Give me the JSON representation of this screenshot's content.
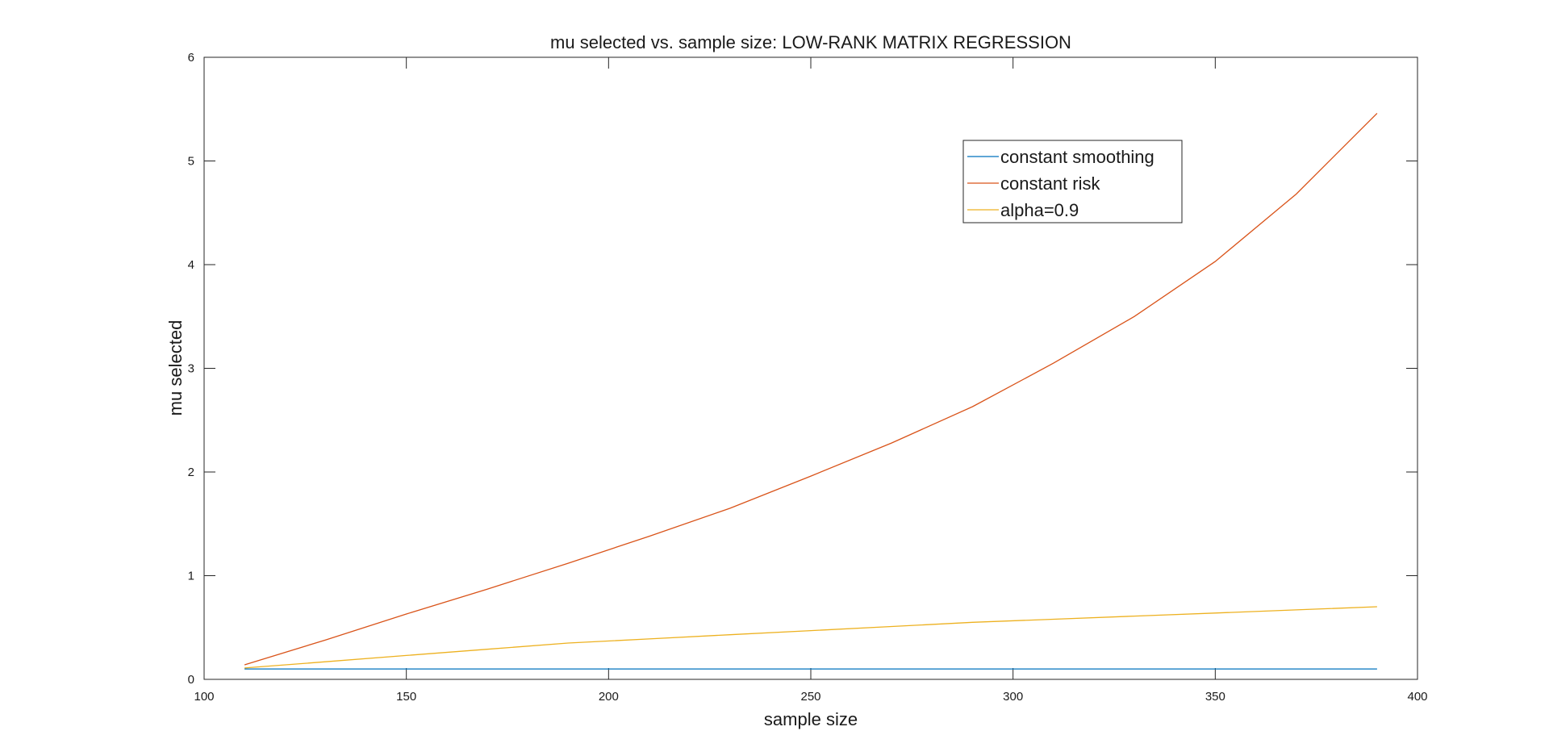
{
  "chart_data": {
    "type": "line",
    "title": "mu selected vs. sample size: LOW-RANK MATRIX REGRESSION",
    "xlabel": "sample size",
    "ylabel": "mu selected",
    "xlim": [
      100,
      400
    ],
    "ylim": [
      0,
      6
    ],
    "xticks": [
      "100",
      "150",
      "200",
      "250",
      "300",
      "350",
      "400"
    ],
    "yticks": [
      "0",
      "1",
      "2",
      "3",
      "4",
      "5",
      "6"
    ],
    "grid": false,
    "legend_position": "top-right",
    "x": [
      110,
      130,
      150,
      170,
      190,
      210,
      230,
      250,
      270,
      290,
      310,
      330,
      350,
      370,
      390
    ],
    "series": [
      {
        "name": "constant smoothing",
        "color": "#0072bd",
        "values": [
          0.1,
          0.1,
          0.1,
          0.1,
          0.1,
          0.1,
          0.1,
          0.1,
          0.1,
          0.1,
          0.1,
          0.1,
          0.1,
          0.1,
          0.1
        ]
      },
      {
        "name": "constant risk",
        "color": "#d95319",
        "values": [
          0.14,
          0.38,
          0.63,
          0.87,
          1.12,
          1.38,
          1.65,
          1.96,
          2.28,
          2.63,
          3.05,
          3.5,
          4.03,
          4.68,
          5.46
        ]
      },
      {
        "name": "alpha=0.9",
        "color": "#edb120",
        "values": [
          0.11,
          0.17,
          0.23,
          0.29,
          0.35,
          0.39,
          0.43,
          0.47,
          0.51,
          0.55,
          0.58,
          0.61,
          0.64,
          0.67,
          0.7
        ]
      }
    ]
  }
}
